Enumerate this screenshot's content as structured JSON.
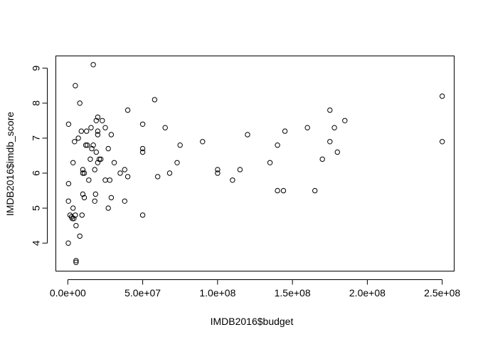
{
  "chart_data": {
    "type": "scatter",
    "xlabel": "IMDB2016$budget",
    "ylabel": "IMDB2016$imdb_score",
    "xlim": [
      -8000000,
      258000000
    ],
    "ylim": [
      3.2,
      9.35
    ],
    "xticks": [
      0,
      50000000,
      100000000,
      150000000,
      200000000,
      250000000
    ],
    "xtick_labels": [
      "0.0e+00",
      "5.0e+07",
      "1.0e+08",
      "1.5e+08",
      "2.0e+08",
      "2.5e+08"
    ],
    "yticks": [
      4,
      5,
      6,
      7,
      8,
      9
    ],
    "ytick_labels": [
      "4",
      "5",
      "6",
      "7",
      "8",
      "9"
    ],
    "grid": false,
    "legend": "none",
    "marker": "open-circle",
    "points": [
      [
        300000,
        4.0
      ],
      [
        500000,
        5.7
      ],
      [
        400000,
        5.2
      ],
      [
        500000,
        7.4
      ],
      [
        1500000,
        4.8
      ],
      [
        2500000,
        4.75
      ],
      [
        3000000,
        4.7
      ],
      [
        3500000,
        5.0
      ],
      [
        3500000,
        6.3
      ],
      [
        4000000,
        4.7
      ],
      [
        4500000,
        6.9
      ],
      [
        5000000,
        4.8
      ],
      [
        5000000,
        8.5
      ],
      [
        5500000,
        4.5
      ],
      [
        5500000,
        3.5
      ],
      [
        5500000,
        3.45
      ],
      [
        7000000,
        7.0
      ],
      [
        8000000,
        4.2
      ],
      [
        8000000,
        8.0
      ],
      [
        9000000,
        7.2
      ],
      [
        9500000,
        4.8
      ],
      [
        10000000,
        5.4
      ],
      [
        10000000,
        6.0
      ],
      [
        10000000,
        6.1
      ],
      [
        11000000,
        6.0
      ],
      [
        11000000,
        5.3
      ],
      [
        12000000,
        6.8
      ],
      [
        12500000,
        7.2
      ],
      [
        13000000,
        6.8
      ],
      [
        14000000,
        5.8
      ],
      [
        15000000,
        6.4
      ],
      [
        15500000,
        7.3
      ],
      [
        16000000,
        6.7
      ],
      [
        17000000,
        9.1
      ],
      [
        17000000,
        6.8
      ],
      [
        18000000,
        5.2
      ],
      [
        18000000,
        6.1
      ],
      [
        18500000,
        5.4
      ],
      [
        19000000,
        6.6
      ],
      [
        19000000,
        7.5
      ],
      [
        20000000,
        7.6
      ],
      [
        20000000,
        7.1
      ],
      [
        20000000,
        6.3
      ],
      [
        20000000,
        7.2
      ],
      [
        21000000,
        6.4
      ],
      [
        22000000,
        6.4
      ],
      [
        23000000,
        7.5
      ],
      [
        25000000,
        5.8
      ],
      [
        25000000,
        7.3
      ],
      [
        27000000,
        5.0
      ],
      [
        27000000,
        6.7
      ],
      [
        28000000,
        5.8
      ],
      [
        29000000,
        5.3
      ],
      [
        29000000,
        7.1
      ],
      [
        31000000,
        6.3
      ],
      [
        35000000,
        6.0
      ],
      [
        38000000,
        6.1
      ],
      [
        38000000,
        5.2
      ],
      [
        40000000,
        7.8
      ],
      [
        40000000,
        5.9
      ],
      [
        50000000,
        7.4
      ],
      [
        50000000,
        6.7
      ],
      [
        50000000,
        6.6
      ],
      [
        50000000,
        4.8
      ],
      [
        58000000,
        8.1
      ],
      [
        60000000,
        5.9
      ],
      [
        65000000,
        7.3
      ],
      [
        68000000,
        6.0
      ],
      [
        73000000,
        6.3
      ],
      [
        75000000,
        6.8
      ],
      [
        90000000,
        6.9
      ],
      [
        100000000,
        6.1
      ],
      [
        100000000,
        6.0
      ],
      [
        110000000,
        5.8
      ],
      [
        115000000,
        6.1
      ],
      [
        120000000,
        7.1
      ],
      [
        135000000,
        6.3
      ],
      [
        140000000,
        6.8
      ],
      [
        140000000,
        5.5
      ],
      [
        144000000,
        5.5
      ],
      [
        145000000,
        7.2
      ],
      [
        160000000,
        7.3
      ],
      [
        165000000,
        5.5
      ],
      [
        170000000,
        6.4
      ],
      [
        175000000,
        6.9
      ],
      [
        175000000,
        7.8
      ],
      [
        178000000,
        7.3
      ],
      [
        180000000,
        6.6
      ],
      [
        185000000,
        7.5
      ],
      [
        250000000,
        8.2
      ],
      [
        250000000,
        6.9
      ]
    ]
  }
}
